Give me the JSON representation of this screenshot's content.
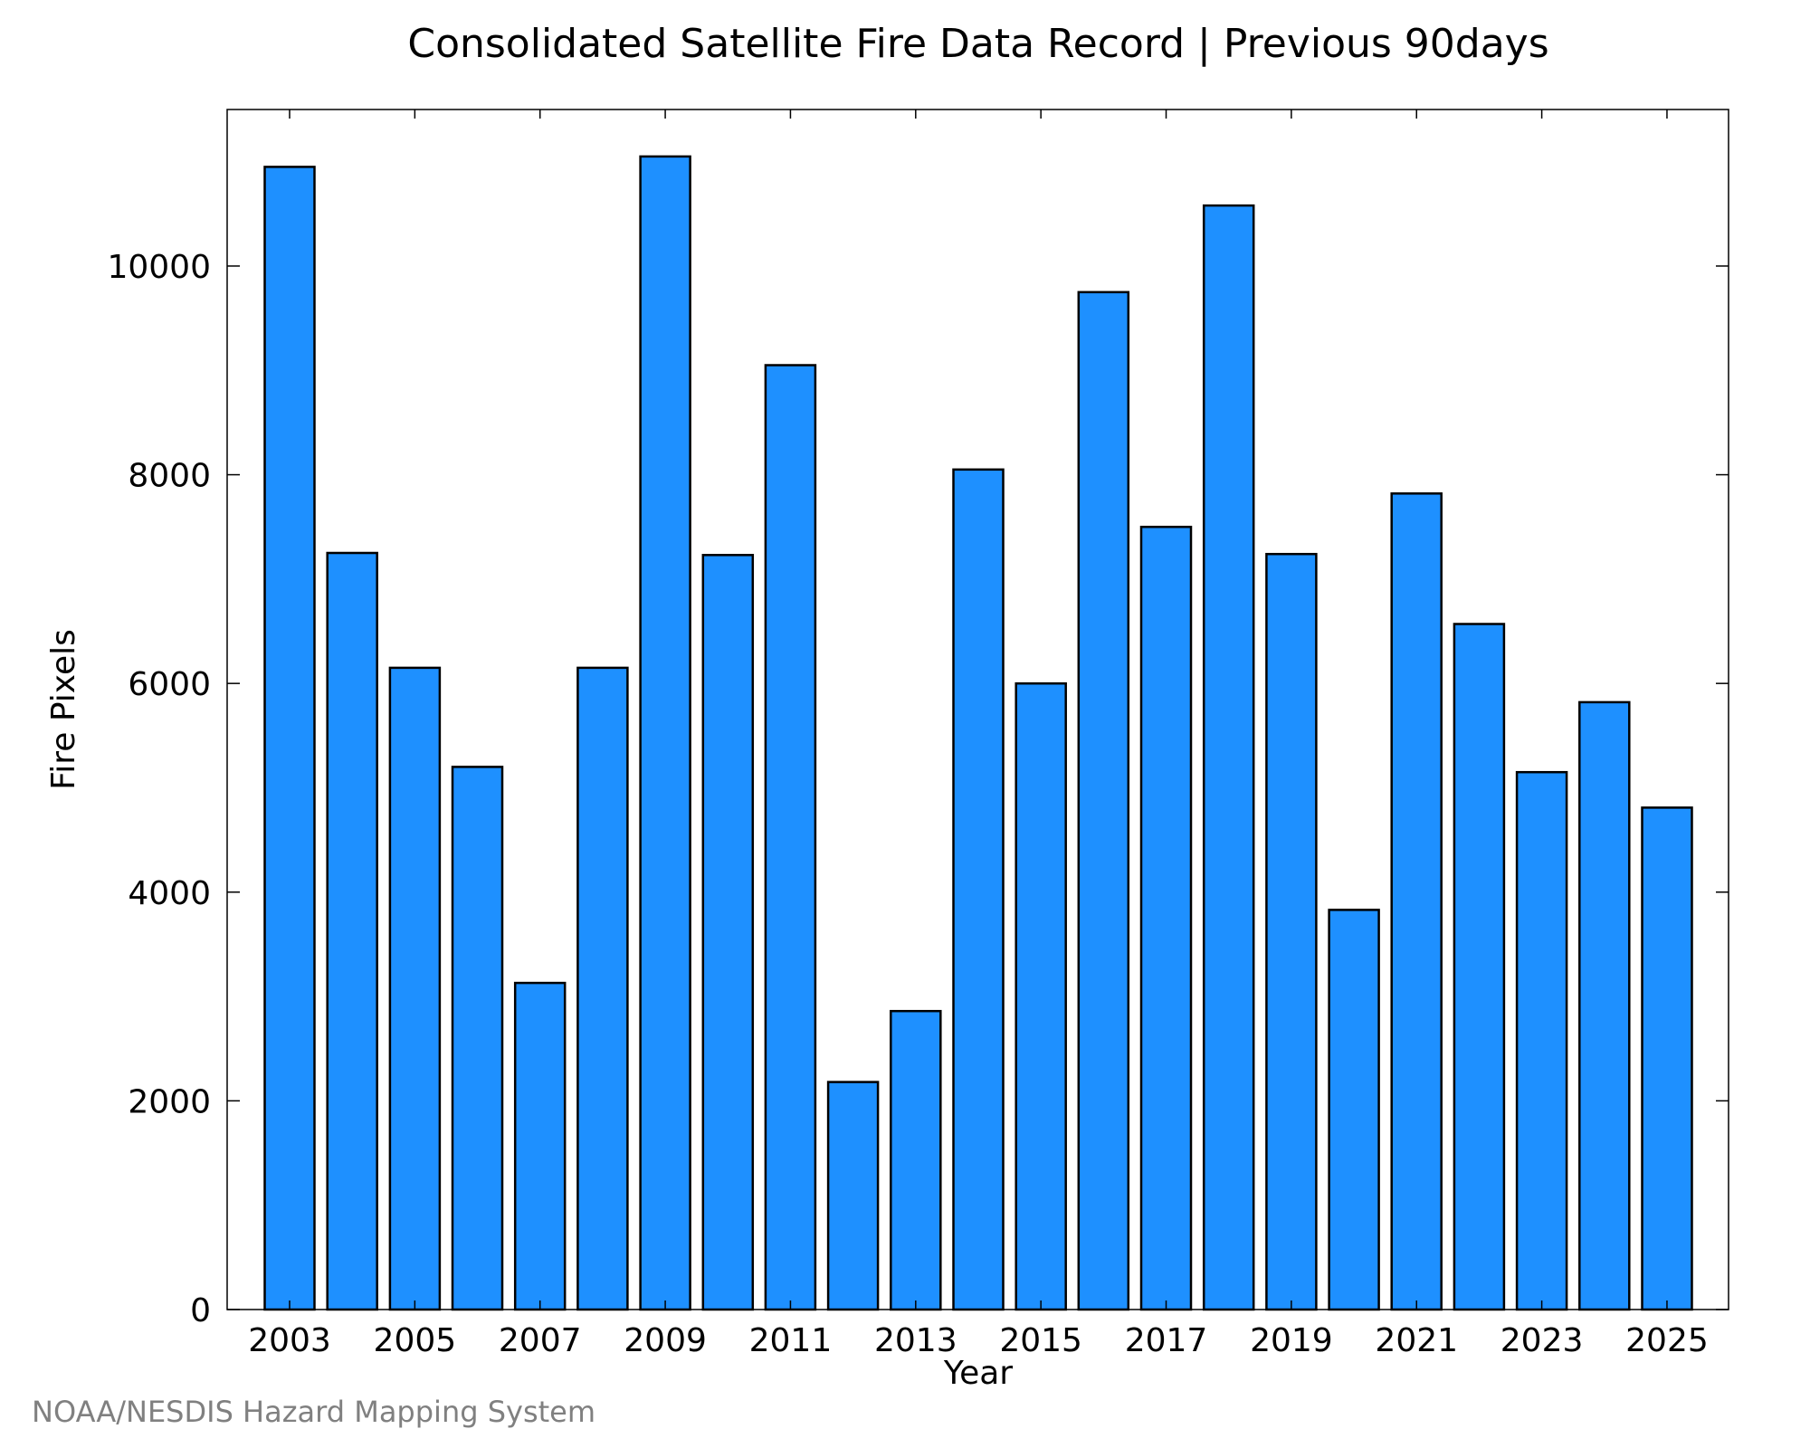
{
  "chart_data": {
    "type": "bar",
    "title": "Consolidated Satellite Fire Data Record | Previous 90days",
    "xlabel": "Year",
    "ylabel": "Fire Pixels",
    "categories": [
      "2003",
      "2004",
      "2005",
      "2006",
      "2007",
      "2008",
      "2009",
      "2010",
      "2011",
      "2012",
      "2013",
      "2014",
      "2015",
      "2016",
      "2017",
      "2018",
      "2019",
      "2020",
      "2021",
      "2022",
      "2023",
      "2024",
      "2025"
    ],
    "values": [
      10950,
      7250,
      6150,
      5200,
      3130,
      6150,
      11050,
      7230,
      9050,
      2180,
      2860,
      8050,
      6000,
      9750,
      7500,
      10580,
      7240,
      3830,
      7820,
      6570,
      5150,
      5820,
      4810
    ],
    "x_tick_labels": [
      "2003",
      "2005",
      "2007",
      "2009",
      "2011",
      "2013",
      "2015",
      "2017",
      "2019",
      "2021",
      "2023",
      "2025"
    ],
    "y_tick_labels": [
      "0",
      "2000",
      "4000",
      "6000",
      "8000",
      "10000"
    ],
    "ylim": [
      0,
      11500
    ],
    "bar_color": "#1E90FF",
    "bar_edge_color": "#000000",
    "grid": false,
    "legend": "none"
  },
  "credit": "NOAA/NESDIS Hazard Mapping System"
}
